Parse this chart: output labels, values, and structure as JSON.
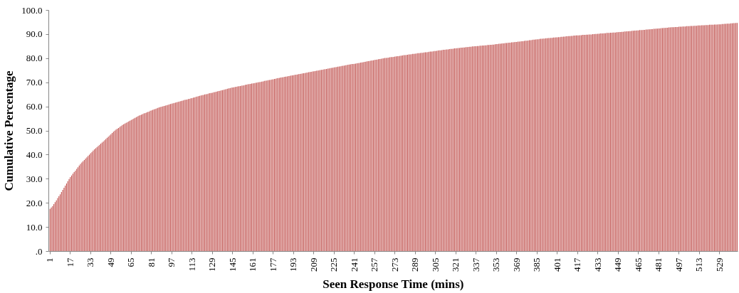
{
  "chart_data": {
    "type": "bar",
    "xlabel": "Seen Response Time (mins)",
    "ylabel": "Cumulative Percentage",
    "ylim": [
      0,
      100
    ],
    "yticks": [
      {
        "value": 0,
        "label": ".0"
      },
      {
        "value": 10,
        "label": "10.0"
      },
      {
        "value": 20,
        "label": "20.0"
      },
      {
        "value": 30,
        "label": "30.0"
      },
      {
        "value": 40,
        "label": "40.0"
      },
      {
        "value": 50,
        "label": "50.0"
      },
      {
        "value": 60,
        "label": "60.0"
      },
      {
        "value": 70,
        "label": "70.0"
      },
      {
        "value": 80,
        "label": "80.0"
      },
      {
        "value": 90,
        "label": "90.0"
      },
      {
        "value": 100,
        "label": "100.0"
      }
    ],
    "grid": false,
    "color": "#c0504d",
    "categories": [
      "1",
      null,
      null,
      null,
      null,
      null,
      null,
      null,
      null,
      null,
      null,
      null,
      null,
      null,
      null,
      null,
      "17",
      null,
      null,
      null,
      null,
      null,
      null,
      null,
      null,
      null,
      null,
      null,
      null,
      null,
      null,
      null,
      "33",
      null,
      null,
      null,
      null,
      null,
      null,
      null,
      null,
      null,
      null,
      null,
      null,
      null,
      null,
      null,
      "49",
      null,
      null,
      null,
      null,
      null,
      null,
      null,
      null,
      null,
      null,
      null,
      null,
      null,
      null,
      null,
      "65",
      null,
      null,
      null,
      null,
      null,
      null,
      null,
      null,
      null,
      null,
      null,
      null,
      null,
      null,
      null,
      "81",
      null,
      null,
      null,
      null,
      null,
      null,
      null,
      null,
      null,
      null,
      null,
      null,
      null,
      null,
      null,
      "97",
      null,
      null,
      null,
      null,
      null,
      null,
      null,
      null,
      null,
      null,
      null,
      null,
      null,
      null,
      null,
      "113",
      null,
      null,
      null,
      null,
      null,
      null,
      null,
      null,
      null,
      null,
      null,
      null,
      null,
      null,
      null,
      "129",
      null,
      null,
      null,
      null,
      null,
      null,
      null,
      null,
      null,
      null,
      null,
      null,
      null,
      null,
      null,
      "145",
      null,
      null,
      null,
      null,
      null,
      null,
      null,
      null,
      null,
      null,
      null,
      null,
      null,
      null,
      null,
      "161",
      null,
      null,
      null,
      null,
      null,
      null,
      null,
      null,
      null,
      null,
      null,
      null,
      null,
      null,
      null,
      "177",
      null,
      null,
      null,
      null,
      null,
      null,
      null,
      null,
      null,
      null,
      null,
      null,
      null,
      null,
      null,
      "193",
      null,
      null,
      null,
      null,
      null,
      null,
      null,
      null,
      null,
      null,
      null,
      null,
      null,
      null,
      null,
      "209",
      null,
      null,
      null,
      null,
      null,
      null,
      null,
      null,
      null,
      null,
      null,
      null,
      null,
      null,
      null,
      "225",
      null,
      null,
      null,
      null,
      null,
      null,
      null,
      null,
      null,
      null,
      null,
      null,
      null,
      null,
      null,
      "241",
      null,
      null,
      null,
      null,
      null,
      null,
      null,
      null,
      null,
      null,
      null,
      null,
      null,
      null,
      null,
      "257",
      null,
      null,
      null,
      null,
      null,
      null,
      null,
      null,
      null,
      null,
      null,
      null,
      null,
      null,
      null,
      "273",
      null,
      null,
      null,
      null,
      null,
      null,
      null,
      null,
      null,
      null,
      null,
      null,
      null,
      null,
      null,
      "289",
      null,
      null,
      null,
      null,
      null,
      null,
      null,
      null,
      null,
      null,
      null,
      null,
      null,
      null,
      null,
      "305",
      null,
      null,
      null,
      null,
      null,
      null,
      null,
      null,
      null,
      null,
      null,
      null,
      null,
      null,
      null,
      "321",
      null,
      null,
      null,
      null,
      null,
      null,
      null,
      null,
      null,
      null,
      null,
      null,
      null,
      null,
      null,
      "337",
      null,
      null,
      null,
      null,
      null,
      null,
      null,
      null,
      null,
      null,
      null,
      null,
      null,
      null,
      null,
      "353",
      null,
      null,
      null,
      null,
      null,
      null,
      null,
      null,
      null,
      null,
      null,
      null,
      null,
      null,
      null,
      "369",
      null,
      null,
      null,
      null,
      null,
      null,
      null,
      null,
      null,
      null,
      null,
      null,
      null,
      null,
      null,
      "385",
      null,
      null,
      null,
      null,
      null,
      null,
      null,
      null,
      null,
      null,
      null,
      null,
      null,
      null,
      null,
      "401",
      null,
      null,
      null,
      null,
      null,
      null,
      null,
      null,
      null,
      null,
      null,
      null,
      null,
      null,
      null,
      "417",
      null,
      null,
      null,
      null,
      null,
      null,
      null,
      null,
      null,
      null,
      null,
      null,
      null,
      null,
      null,
      "433",
      null,
      null,
      null,
      null,
      null,
      null,
      null,
      null,
      null,
      null,
      null,
      null,
      null,
      null,
      null,
      "449",
      null,
      null,
      null,
      null,
      null,
      null,
      null,
      null,
      null,
      null,
      null,
      null,
      null,
      null,
      null,
      "465",
      null,
      null,
      null,
      null,
      null,
      null,
      null,
      null,
      null,
      null,
      null,
      null,
      null,
      null,
      null,
      "481",
      null,
      null,
      null,
      null,
      null,
      null,
      null,
      null,
      null,
      null,
      null,
      null,
      null,
      null,
      null,
      "497",
      null,
      null,
      null,
      null,
      null,
      null,
      null,
      null,
      null,
      null,
      null,
      null,
      null,
      null,
      null,
      "513",
      null,
      null,
      null,
      null,
      null,
      null,
      null,
      null,
      null,
      null,
      null,
      null,
      null,
      null,
      null,
      "529",
      null,
      null,
      null,
      null,
      null,
      null,
      null,
      null,
      null,
      null,
      null,
      null,
      null,
      null
    ],
    "values": [
      17.6,
      18.2,
      18.8,
      19.6,
      20.4,
      21.2,
      22.1,
      22.9,
      23.7,
      24.6,
      25.5,
      26.4,
      27.3,
      28.2,
      29.1,
      30.0,
      30.8,
      31.5,
      32.2,
      32.9,
      33.5,
      34.2,
      34.9,
      35.6,
      36.3,
      36.9,
      37.4,
      37.9,
      38.5,
      39.0,
      39.6,
      40.1,
      40.7,
      41.2,
      41.8,
      42.3,
      42.8,
      43.2,
      43.7,
      44.2,
      44.7,
      45.1,
      45.6,
      46.1,
      46.6,
      47.1,
      47.6,
      48.1,
      48.6,
      49.1,
      49.6,
      50.1,
      50.5,
      50.9,
      51.2,
      51.6,
      52.0,
      52.4,
      52.7,
      53.0,
      53.3,
      53.6,
      53.9,
      54.2,
      54.5,
      54.8,
      55.1,
      55.4,
      55.7,
      56.0,
      56.3,
      56.5,
      56.7,
      56.9,
      57.2,
      57.4,
      57.6,
      57.8,
      58.0,
      58.3,
      58.5,
      58.7,
      58.9,
      59.1,
      59.3,
      59.5,
      59.7,
      59.9,
      60.0,
      60.2,
      60.3,
      60.5,
      60.6,
      60.8,
      61.0,
      61.1,
      61.3,
      61.4,
      61.6,
      61.7,
      61.9,
      62.0,
      62.2,
      62.3,
      62.5,
      62.6,
      62.8,
      62.9,
      63.0,
      63.2,
      63.3,
      63.5,
      63.6,
      63.8,
      63.9,
      64.1,
      64.2,
      64.4,
      64.5,
      64.7,
      64.8,
      64.9,
      65.1,
      65.2,
      65.3,
      65.5,
      65.6,
      65.7,
      65.8,
      66.0,
      66.1,
      66.2,
      66.4,
      66.5,
      66.6,
      66.8,
      66.9,
      67.0,
      67.2,
      67.3,
      67.5,
      67.6,
      67.7,
      67.9,
      68.0,
      68.1,
      68.2,
      68.3,
      68.4,
      68.5,
      68.6,
      68.7,
      68.8,
      68.9,
      69.1,
      69.2,
      69.3,
      69.4,
      69.5,
      69.6,
      69.7,
      69.8,
      69.9,
      70.0,
      70.1,
      70.2,
      70.3,
      70.4,
      70.5,
      70.7,
      70.8,
      70.9,
      71.0,
      71.1,
      71.2,
      71.3,
      71.4,
      71.5,
      71.6,
      71.8,
      71.9,
      72.0,
      72.1,
      72.2,
      72.3,
      72.4,
      72.5,
      72.6,
      72.7,
      72.8,
      72.9,
      73.0,
      73.1,
      73.2,
      73.3,
      73.4,
      73.5,
      73.6,
      73.7,
      73.8,
      73.9,
      74.0,
      74.1,
      74.2,
      74.3,
      74.4,
      74.5,
      74.6,
      74.7,
      74.8,
      74.9,
      75.0,
      75.1,
      75.2,
      75.3,
      75.4,
      75.5,
      75.6,
      75.7,
      75.8,
      75.9,
      76.0,
      76.1,
      76.2,
      76.3,
      76.4,
      76.5,
      76.6,
      76.7,
      76.8,
      76.9,
      77.0,
      77.1,
      77.2,
      77.3,
      77.4,
      77.5,
      77.6,
      77.7,
      77.7,
      77.8,
      77.9,
      78.0,
      78.1,
      78.2,
      78.3,
      78.4,
      78.5,
      78.6,
      78.7,
      78.8,
      78.9,
      79.0,
      79.1,
      79.2,
      79.3,
      79.4,
      79.5,
      79.6,
      79.7,
      79.8,
      79.9,
      80.0,
      80.1,
      80.2,
      80.2,
      80.3,
      80.4,
      80.5,
      80.6,
      80.6,
      80.7,
      80.8,
      80.9,
      81.0,
      81.0,
      81.1,
      81.2,
      81.3,
      81.4,
      81.4,
      81.5,
      81.6,
      81.7,
      81.7,
      81.8,
      81.9,
      81.9,
      82.0,
      82.1,
      82.2,
      82.2,
      82.3,
      82.4,
      82.4,
      82.5,
      82.6,
      82.6,
      82.7,
      82.8,
      82.9,
      82.9,
      83.0,
      83.1,
      83.1,
      83.2,
      83.3,
      83.4,
      83.4,
      83.5,
      83.6,
      83.6,
      83.7,
      83.8,
      83.8,
      83.9,
      84.0,
      84.0,
      84.1,
      84.2,
      84.2,
      84.3,
      84.4,
      84.4,
      84.5,
      84.5,
      84.6,
      84.6,
      84.7,
      84.7,
      84.8,
      84.9,
      84.9,
      85.0,
      85.0,
      85.1,
      85.1,
      85.2,
      85.2,
      85.3,
      85.3,
      85.4,
      85.4,
      85.5,
      85.5,
      85.6,
      85.6,
      85.7,
      85.7,
      85.8,
      85.8,
      85.9,
      86.0,
      86.0,
      86.1,
      86.1,
      86.2,
      86.3,
      86.3,
      86.4,
      86.4,
      86.5,
      86.6,
      86.6,
      86.7,
      86.7,
      86.8,
      86.9,
      86.9,
      87.0,
      87.0,
      87.1,
      87.2,
      87.2,
      87.3,
      87.4,
      87.4,
      87.5,
      87.6,
      87.6,
      87.7,
      87.8,
      87.8,
      87.9,
      88.0,
      88.0,
      88.1,
      88.2,
      88.2,
      88.3,
      88.3,
      88.4,
      88.4,
      88.5,
      88.5,
      88.6,
      88.6,
      88.7,
      88.7,
      88.8,
      88.8,
      88.9,
      88.9,
      89.0,
      89.0,
      89.1,
      89.1,
      89.2,
      89.2,
      89.3,
      89.3,
      89.4,
      89.4,
      89.5,
      89.5,
      89.6,
      89.6,
      89.6,
      89.7,
      89.7,
      89.8,
      89.8,
      89.8,
      89.9,
      89.9,
      90.0,
      90.0,
      90.0,
      90.1,
      90.1,
      90.2,
      90.2,
      90.3,
      90.3,
      90.4,
      90.4,
      90.4,
      90.5,
      90.5,
      90.6,
      90.6,
      90.6,
      90.7,
      90.7,
      90.8,
      90.8,
      90.8,
      90.9,
      90.9,
      91.0,
      91.0,
      91.1,
      91.1,
      91.2,
      91.2,
      91.3,
      91.3,
      91.4,
      91.4,
      91.5,
      91.5,
      91.6,
      91.6,
      91.7,
      91.7,
      91.8,
      91.8,
      91.8,
      91.9,
      91.9,
      92.0,
      92.0,
      92.1,
      92.1,
      92.2,
      92.2,
      92.3,
      92.3,
      92.4,
      92.4,
      92.5,
      92.5,
      92.6,
      92.6,
      92.7,
      92.7,
      92.8,
      92.8,
      92.9,
      92.9,
      93.0,
      93.0,
      93.0,
      93.1,
      93.1,
      93.1,
      93.2,
      93.2,
      93.2,
      93.3,
      93.3,
      93.3,
      93.4,
      93.4,
      93.4,
      93.5,
      93.5,
      93.5,
      93.6,
      93.6,
      93.6,
      93.7,
      93.7,
      93.7,
      93.8,
      93.8,
      93.8,
      93.9,
      93.9,
      93.9,
      94.0,
      94.0,
      94.0,
      94.0,
      94.1,
      94.1,
      94.1,
      94.2,
      94.2,
      94.2,
      94.3,
      94.3,
      94.4,
      94.4,
      94.5,
      94.5,
      94.5,
      94.6,
      94.6,
      94.7,
      94.7,
      94.8,
      94.8
    ]
  }
}
